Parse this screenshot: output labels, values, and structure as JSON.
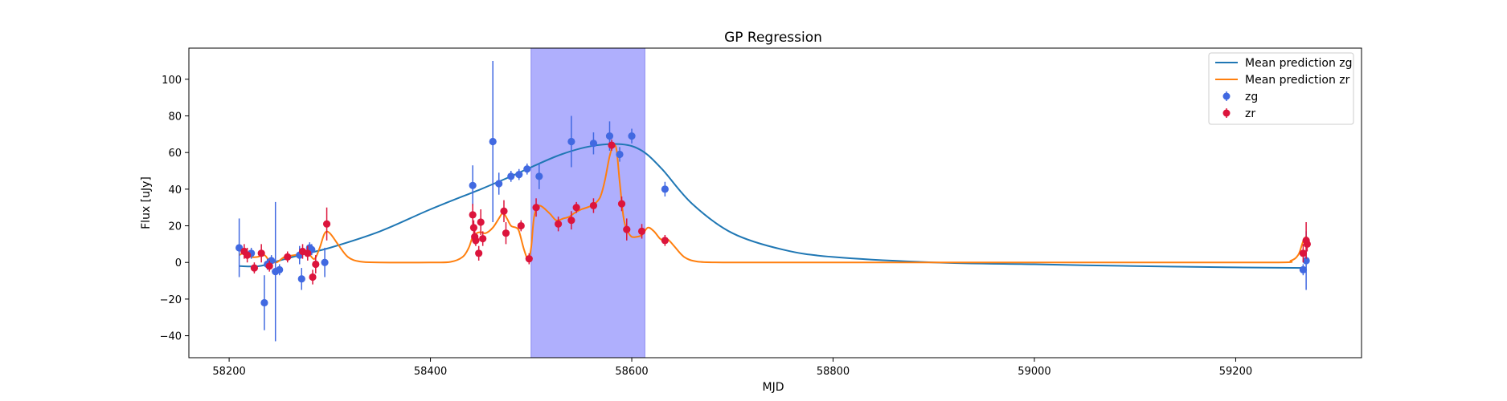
{
  "chart_data": {
    "type": "scatter",
    "title": "GP Regression",
    "xlabel": "MJD",
    "ylabel": "Flux [uJy]",
    "xlim": [
      58160,
      59325
    ],
    "ylim": [
      -52,
      117
    ],
    "x_ticks": [
      58200,
      58400,
      58600,
      58800,
      59000,
      59200
    ],
    "y_ticks": [
      -40,
      -20,
      0,
      20,
      40,
      60,
      80,
      100
    ],
    "grid": false,
    "legend_position": "top-right",
    "highlight_span": {
      "x0": 58500,
      "x1": 58613,
      "color": "#a6a6fd"
    },
    "colors": {
      "line_zg": "#1f77b4",
      "line_zr": "#ff7f0e",
      "points_zg": "#4169e1",
      "points_zr": "#dc143c"
    },
    "lines": [
      {
        "name": "Mean prediction zg",
        "color": "#1f77b4",
        "x": [
          58210,
          58230,
          58250,
          58270,
          58300,
          58350,
          58400,
          58450,
          58480,
          58500,
          58530,
          58560,
          58590,
          58610,
          58630,
          58660,
          58700,
          58750,
          58800,
          58900,
          59000,
          59100,
          59200,
          59270
        ],
        "y": [
          -2,
          -2,
          1,
          4,
          8,
          17,
          29,
          40,
          47,
          52,
          59,
          63.5,
          64.5,
          61,
          51,
          32,
          16,
          7,
          3,
          0,
          -1,
          -2,
          -2.7,
          -3
        ]
      },
      {
        "name": "Mean prediction zr",
        "color": "#ff7f0e",
        "x": [
          58210,
          58215,
          58222,
          58228,
          58235,
          58240,
          58247,
          58255,
          58265,
          58275,
          58280,
          58285,
          58290,
          58295,
          58300,
          58308,
          58318,
          58330,
          58350,
          58400,
          58420,
          58432,
          58438,
          58442,
          58446,
          58450,
          58455,
          58462,
          58468,
          58472,
          58476,
          58480,
          58485,
          58488,
          58493,
          58497,
          58500,
          58503,
          58508,
          58518,
          58525,
          58532,
          58538,
          58543,
          58550,
          58560,
          58568,
          58573,
          58578,
          58582,
          58585,
          58588,
          58592,
          58596,
          58600,
          58605,
          58610,
          58616,
          58622,
          58628,
          58632,
          58636,
          58642,
          58652,
          58665,
          58690,
          58750,
          58900,
          59100,
          59240,
          59255,
          59262,
          59266,
          59268,
          59270
        ],
        "y": [
          4,
          5,
          3,
          3,
          4,
          1,
          0,
          3,
          4,
          5,
          4,
          2,
          8,
          16,
          16,
          10,
          3,
          0.5,
          0,
          0,
          0.3,
          3,
          8,
          14,
          16,
          16.5,
          16,
          19,
          24,
          27,
          24,
          20,
          19,
          17,
          7,
          2,
          8,
          25,
          31,
          27,
          23,
          24,
          25,
          27,
          29,
          31,
          35,
          44,
          58,
          64,
          61,
          44,
          24,
          17,
          14,
          14,
          15,
          19,
          17,
          13,
          12,
          12.5,
          9,
          3,
          0.5,
          0,
          0,
          0,
          0,
          0,
          1,
          4,
          10,
          13,
          14
        ]
      }
    ],
    "series": [
      {
        "name": "zg",
        "color": "#4169e1",
        "x": [
          58210,
          58222,
          58235,
          58238,
          58242,
          58246,
          58250,
          58270,
          58272,
          58280,
          58282,
          58295,
          58442,
          58462,
          58468,
          58480,
          58488,
          58496,
          58508,
          58540,
          58562,
          58578,
          58588,
          58600,
          58633,
          59267,
          59270
        ],
        "y": [
          8,
          5,
          -22,
          -1,
          1,
          -5,
          -4,
          4,
          -9,
          8,
          7,
          0,
          42,
          66,
          43,
          47,
          48,
          51,
          47,
          66,
          65,
          69,
          59,
          69,
          40,
          -4,
          1
        ],
        "err": [
          16,
          3,
          15,
          3,
          3,
          38,
          3,
          5,
          6,
          3,
          3,
          8,
          11,
          44,
          6,
          3,
          3,
          3,
          7,
          14,
          6,
          8,
          4,
          4,
          4,
          3,
          16
        ]
      },
      {
        "name": "zr",
        "color": "#dc143c",
        "x": [
          58215,
          58218,
          58225,
          58232,
          58240,
          58258,
          58273,
          58278,
          58283,
          58286,
          58297,
          58442,
          58443,
          58444,
          58445,
          58448,
          58450,
          58452,
          58473,
          58475,
          58490,
          58498,
          58505,
          58527,
          58540,
          58545,
          58562,
          58580,
          58590,
          58595,
          58610,
          58633,
          59267,
          59270,
          59271
        ],
        "y": [
          6,
          4,
          -3,
          5,
          -2,
          3,
          6,
          5,
          -8,
          -1,
          21,
          26,
          19,
          14,
          12,
          5,
          22,
          13,
          28,
          16,
          20,
          2,
          30,
          21,
          23,
          30,
          31,
          64,
          32,
          18,
          17,
          12,
          5,
          12,
          10
        ],
        "err": [
          4,
          4,
          3,
          5,
          3,
          3,
          4,
          4,
          4,
          5,
          9,
          6,
          4,
          4,
          3,
          4,
          7,
          4,
          6,
          6,
          3,
          3,
          5,
          4,
          5,
          3,
          4,
          3,
          4,
          6,
          4,
          3,
          5,
          10,
          4
        ]
      }
    ],
    "legend": {
      "line_zg": "Mean prediction zg",
      "line_zr": "Mean prediction zr",
      "points_zg": "zg",
      "points_zr": "zr"
    }
  }
}
